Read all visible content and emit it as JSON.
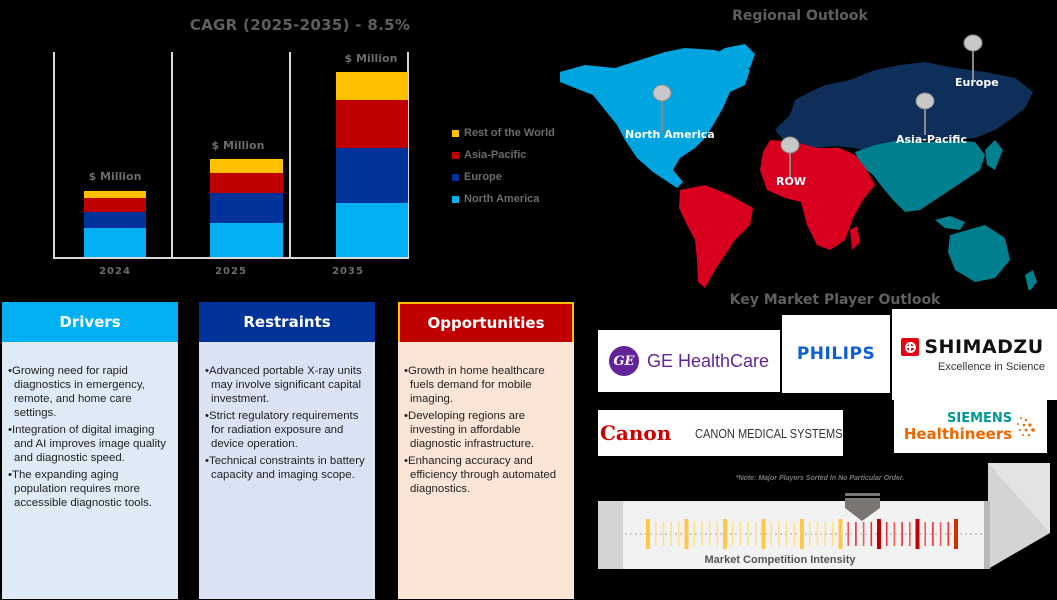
{
  "chart": {
    "title": "CAGR (2025-2035) - 8.5%",
    "bar_label": "$ Million",
    "legend": [
      {
        "label": "Rest of the World",
        "color": "#FFC000"
      },
      {
        "label": "Asia-Pacific",
        "color": "#C00000"
      },
      {
        "label": "Europe",
        "color": "#003399"
      },
      {
        "label": "North America",
        "color": "#00B0F0"
      }
    ],
    "years": [
      "2024",
      "2025",
      "2035"
    ]
  },
  "chart_data": {
    "type": "bar",
    "stacked": true,
    "title": "CAGR (2025-2035) - 8.5%",
    "xlabel": "",
    "ylabel": "$ Million",
    "categories": [
      "2024",
      "2025",
      "2035"
    ],
    "data_labels": [
      "$ Million",
      "$ Million",
      "$ Million"
    ],
    "series": [
      {
        "name": "North America",
        "color": "#00B0F0",
        "values": [
          29,
          34,
          55
        ]
      },
      {
        "name": "Europe",
        "color": "#003399",
        "values": [
          16,
          30,
          55
        ]
      },
      {
        "name": "Asia-Pacific",
        "color": "#C00000",
        "values": [
          14,
          20,
          48
        ]
      },
      {
        "name": "Rest of the World",
        "color": "#FFC000",
        "values": [
          7,
          14,
          28
        ]
      }
    ],
    "note": "Values in relative units estimated from bar pixel heights; no numeric axis shown",
    "grid": true,
    "legend_position": "right"
  },
  "map": {
    "title": "Regional Outlook",
    "regions": [
      {
        "label": "North America",
        "color": "#00A5E0"
      },
      {
        "label": "Europe",
        "color": "#0D2F5A"
      },
      {
        "label": "Asia-Pacific",
        "color": "#00808F"
      },
      {
        "label": "ROW",
        "color": "#D9001F"
      }
    ]
  },
  "dro": {
    "drivers": {
      "title": "Drivers",
      "header_color": "#00B0F0",
      "items": [
        "Growing need for rapid diagnostics in emergency, remote, and home care settings.",
        "Integration of digital imaging and AI improves image quality and diagnostic speed.",
        "The expanding aging population requires more accessible diagnostic tools."
      ]
    },
    "restraints": {
      "title": "Restraints",
      "header_color": "#003399",
      "items": [
        "Advanced portable X-ray units may involve significant capital investment.",
        "Strict regulatory requirements for radiation exposure and device operation.",
        "Technical constraints in battery capacity and imaging scope."
      ]
    },
    "opportunities": {
      "title": "Opportunities",
      "header_color": "#C00000",
      "items": [
        "Growth in home healthcare fuels demand for mobile imaging.",
        "Developing regions are investing in affordable diagnostic infrastructure.",
        "Enhancing accuracy and efficiency through automated diagnostics."
      ]
    }
  },
  "players": {
    "title": "Key Market Player Outlook",
    "logos": {
      "ge": {
        "monogram": "GE",
        "name": "GE HealthCare"
      },
      "philips": {
        "name": "PHILIPS"
      },
      "shimadzu": {
        "name": "SHIMADZU",
        "tagline": "Excellence in Science"
      },
      "canon": {
        "brand": "Canon",
        "name": "CANON MEDICAL SYSTEMS"
      },
      "siemens": {
        "line1": "SIEMENS",
        "line2": "Healthineers"
      }
    },
    "note": "*Note: Major Players Sorted In No Particular Order.",
    "intensity_label": "Market Competition Intensity"
  }
}
